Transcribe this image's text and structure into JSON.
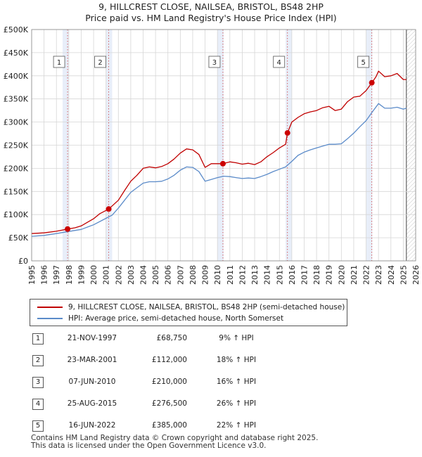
{
  "chart_data": {
    "type": "line",
    "title": "9, HILLCREST CLOSE, NAILSEA, BRISTOL, BS48 2HP",
    "subtitle": "Price paid vs. HM Land Registry's House Price Index (HPI)",
    "xlim": [
      1995,
      2026
    ],
    "ylim": [
      0,
      500000
    ],
    "x_ticks": [
      "1995",
      "1996",
      "1997",
      "1998",
      "1999",
      "2000",
      "2001",
      "2002",
      "2003",
      "2004",
      "2005",
      "2006",
      "2007",
      "2008",
      "2009",
      "2010",
      "2011",
      "2012",
      "2013",
      "2014",
      "2015",
      "2016",
      "2017",
      "2018",
      "2019",
      "2020",
      "2021",
      "2022",
      "2023",
      "2024",
      "2025",
      "2026"
    ],
    "y_ticks": [
      {
        "value": 0,
        "label": "£0"
      },
      {
        "value": 50000,
        "label": "£50K"
      },
      {
        "value": 100000,
        "label": "£100K"
      },
      {
        "value": 150000,
        "label": "£150K"
      },
      {
        "value": 200000,
        "label": "£200K"
      },
      {
        "value": 250000,
        "label": "£250K"
      },
      {
        "value": 300000,
        "label": "£300K"
      },
      {
        "value": 350000,
        "label": "£350K"
      },
      {
        "value": 400000,
        "label": "£400K"
      },
      {
        "value": 450000,
        "label": "£450K"
      },
      {
        "value": 500000,
        "label": "£500K"
      }
    ],
    "data_end": 2025.25,
    "series": [
      {
        "name": "9, HILLCREST CLOSE, NAILSEA, BRISTOL, BS48 2HP (semi-detached house)",
        "color": "#c00000",
        "points": [
          [
            1995.0,
            59000
          ],
          [
            1996.0,
            60500
          ],
          [
            1997.0,
            64000
          ],
          [
            1997.9,
            68750
          ],
          [
            1998.5,
            71500
          ],
          [
            1999.0,
            75500
          ],
          [
            2000.0,
            91000
          ],
          [
            2000.5,
            102000
          ],
          [
            2001.22,
            112000
          ],
          [
            2002.0,
            131000
          ],
          [
            2002.5,
            152000
          ],
          [
            2003.0,
            172000
          ],
          [
            2003.5,
            185000
          ],
          [
            2004.0,
            200000
          ],
          [
            2004.5,
            203000
          ],
          [
            2005.0,
            201000
          ],
          [
            2005.5,
            204000
          ],
          [
            2006.0,
            210000
          ],
          [
            2006.5,
            220000
          ],
          [
            2007.0,
            233000
          ],
          [
            2007.5,
            242000
          ],
          [
            2008.0,
            240000
          ],
          [
            2008.5,
            230000
          ],
          [
            2009.0,
            202000
          ],
          [
            2009.5,
            210000
          ],
          [
            2010.0,
            210000
          ],
          [
            2010.44,
            210000
          ],
          [
            2011.0,
            214000
          ],
          [
            2011.5,
            212000
          ],
          [
            2012.0,
            209000
          ],
          [
            2012.5,
            211000
          ],
          [
            2013.0,
            208000
          ],
          [
            2013.5,
            214000
          ],
          [
            2014.0,
            225000
          ],
          [
            2014.5,
            234000
          ],
          [
            2015.0,
            244000
          ],
          [
            2015.5,
            252000
          ],
          [
            2015.65,
            276500
          ],
          [
            2016.0,
            300000
          ],
          [
            2016.5,
            310000
          ],
          [
            2017.0,
            318000
          ],
          [
            2017.5,
            322000
          ],
          [
            2018.0,
            325000
          ],
          [
            2018.5,
            331000
          ],
          [
            2019.0,
            334000
          ],
          [
            2019.5,
            325000
          ],
          [
            2020.0,
            328000
          ],
          [
            2020.5,
            344000
          ],
          [
            2021.0,
            354000
          ],
          [
            2021.5,
            356000
          ],
          [
            2022.0,
            368000
          ],
          [
            2022.46,
            385000
          ],
          [
            2022.8,
            398000
          ],
          [
            2023.0,
            410000
          ],
          [
            2023.5,
            398000
          ],
          [
            2024.0,
            400000
          ],
          [
            2024.5,
            405000
          ],
          [
            2025.0,
            392000
          ],
          [
            2025.25,
            392000
          ]
        ]
      },
      {
        "name": "HPI: Average price, semi-detached house, North Somerset",
        "color": "#5b8bc9",
        "points": [
          [
            1995.0,
            53000
          ],
          [
            1996.0,
            55000
          ],
          [
            1997.0,
            59000
          ],
          [
            1998.0,
            63500
          ],
          [
            1999.0,
            68000
          ],
          [
            2000.0,
            78000
          ],
          [
            2001.0,
            92000
          ],
          [
            2001.5,
            99000
          ],
          [
            2002.0,
            114000
          ],
          [
            2002.5,
            131000
          ],
          [
            2003.0,
            148000
          ],
          [
            2003.5,
            158000
          ],
          [
            2004.0,
            168000
          ],
          [
            2004.5,
            171000
          ],
          [
            2005.0,
            171000
          ],
          [
            2005.5,
            172000
          ],
          [
            2006.0,
            177000
          ],
          [
            2006.5,
            185000
          ],
          [
            2007.0,
            196000
          ],
          [
            2007.5,
            203000
          ],
          [
            2008.0,
            202000
          ],
          [
            2008.5,
            193000
          ],
          [
            2009.0,
            172000
          ],
          [
            2009.5,
            176000
          ],
          [
            2010.0,
            180000
          ],
          [
            2010.5,
            183000
          ],
          [
            2011.0,
            182000
          ],
          [
            2011.5,
            180000
          ],
          [
            2012.0,
            178000
          ],
          [
            2012.5,
            179000
          ],
          [
            2013.0,
            178000
          ],
          [
            2013.5,
            182000
          ],
          [
            2014.0,
            187000
          ],
          [
            2014.5,
            193000
          ],
          [
            2015.0,
            198000
          ],
          [
            2015.5,
            203000
          ],
          [
            2016.0,
            215000
          ],
          [
            2016.5,
            228000
          ],
          [
            2017.0,
            235000
          ],
          [
            2017.5,
            240000
          ],
          [
            2018.0,
            244000
          ],
          [
            2018.5,
            248000
          ],
          [
            2019.0,
            252000
          ],
          [
            2019.5,
            252000
          ],
          [
            2020.0,
            253000
          ],
          [
            2020.5,
            264000
          ],
          [
            2021.0,
            276000
          ],
          [
            2021.5,
            290000
          ],
          [
            2022.0,
            303000
          ],
          [
            2022.5,
            322000
          ],
          [
            2023.0,
            340000
          ],
          [
            2023.5,
            330000
          ],
          [
            2024.0,
            330000
          ],
          [
            2024.5,
            332000
          ],
          [
            2025.0,
            328000
          ],
          [
            2025.25,
            330000
          ]
        ]
      }
    ],
    "sales": [
      {
        "label": "1",
        "x": 1997.9,
        "value": 68750
      },
      {
        "label": "2",
        "x": 2001.22,
        "value": 112000
      },
      {
        "label": "3",
        "x": 2010.44,
        "value": 210000
      },
      {
        "label": "4",
        "x": 2015.65,
        "value": 276500
      },
      {
        "label": "5",
        "x": 2022.46,
        "value": 385000
      }
    ]
  },
  "legend": {
    "property_label": "9, HILLCREST CLOSE, NAILSEA, BRISTOL, BS48 2HP (semi-detached house)",
    "hpi_label": "HPI: Average price, semi-detached house, North Somerset"
  },
  "sales_table": [
    {
      "num": "1",
      "date": "21-NOV-1997",
      "price": "£68,750",
      "hpi": "9% ↑ HPI"
    },
    {
      "num": "2",
      "date": "23-MAR-2001",
      "price": "£112,000",
      "hpi": "18% ↑ HPI"
    },
    {
      "num": "3",
      "date": "07-JUN-2010",
      "price": "£210,000",
      "hpi": "16% ↑ HPI"
    },
    {
      "num": "4",
      "date": "25-AUG-2015",
      "price": "£276,500",
      "hpi": "26% ↑ HPI"
    },
    {
      "num": "5",
      "date": "16-JUN-2022",
      "price": "£385,000",
      "hpi": "22% ↑ HPI"
    }
  ],
  "footer": {
    "line1": "Contains HM Land Registry data © Crown copyright and database right 2025.",
    "line2": "This data is licensed under the Open Government Licence v3.0."
  },
  "colors": {
    "property": "#c00000",
    "hpi": "#5b8bc9",
    "sale_band": "#e8eef9",
    "grid": "#d6d6d6",
    "plot_bg": "#eef2f9"
  }
}
